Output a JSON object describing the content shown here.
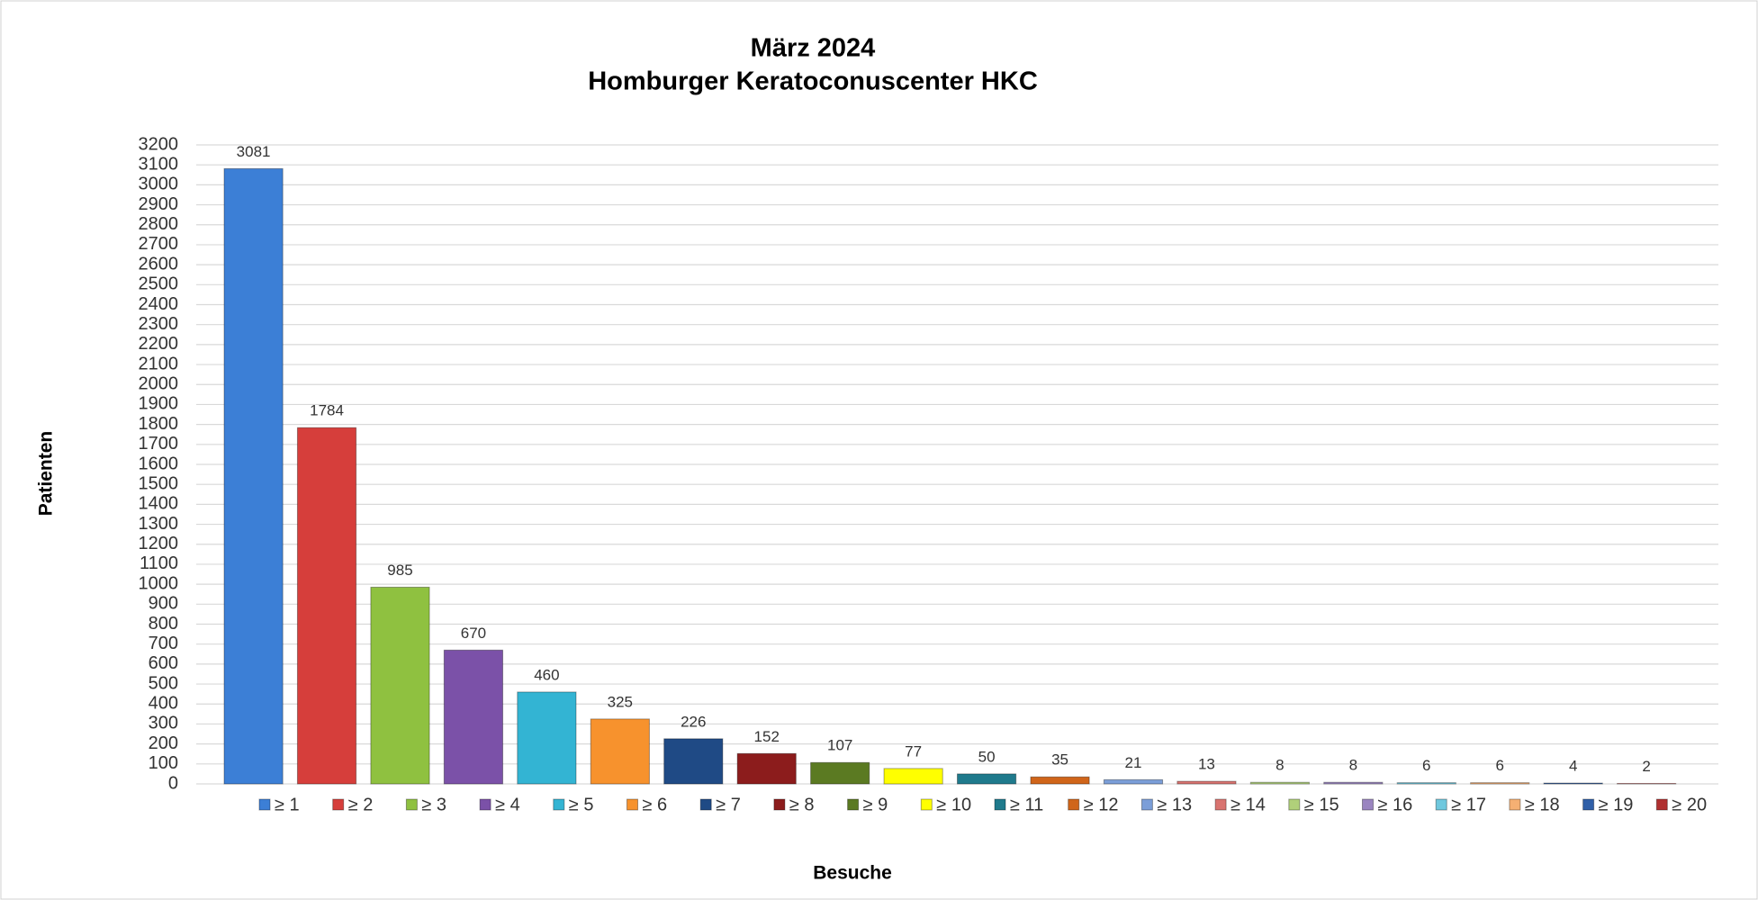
{
  "chart_data": {
    "type": "bar",
    "title": [
      "März 2024",
      "Homburger Keratoconuscenter HKC"
    ],
    "y_label": "Patienten",
    "x_label": "Besuche",
    "series": [
      {
        "name": "≥ 1",
        "color": "#3c7fd6",
        "values": [
          3081
        ]
      },
      {
        "name": "≥ 2",
        "color": "#d63e3b",
        "values": [
          1784
        ]
      },
      {
        "name": "≥ 3",
        "color": "#8fc140",
        "values": [
          985
        ]
      },
      {
        "name": "≥ 4",
        "color": "#7b51a8",
        "values": [
          670
        ]
      },
      {
        "name": "≥ 5",
        "color": "#33b4d3",
        "values": [
          460
        ]
      },
      {
        "name": "≥ 6",
        "color": "#f7922d",
        "values": [
          325
        ]
      },
      {
        "name": "≥ 7",
        "color": "#1f4a85",
        "values": [
          226
        ]
      },
      {
        "name": "≥ 8",
        "color": "#8c1c1c",
        "values": [
          152
        ]
      },
      {
        "name": "≥ 9",
        "color": "#5b7a22",
        "values": [
          107
        ]
      },
      {
        "name": "≥ 10",
        "color": "#ffff00",
        "values": [
          77
        ]
      },
      {
        "name": "≥ 11",
        "color": "#1f7a8c",
        "values": [
          50
        ]
      },
      {
        "name": "≥ 12",
        "color": "#d0651a",
        "values": [
          35
        ]
      },
      {
        "name": "≥ 13",
        "color": "#7b9ed8",
        "values": [
          21
        ]
      },
      {
        "name": "≥ 14",
        "color": "#d97470",
        "values": [
          13
        ]
      },
      {
        "name": "≥ 15",
        "color": "#b0d07a",
        "values": [
          8
        ]
      },
      {
        "name": "≥ 16",
        "color": "#9a85c0",
        "values": [
          8
        ]
      },
      {
        "name": "≥ 17",
        "color": "#6fc8de",
        "values": [
          6
        ]
      },
      {
        "name": "≥ 18",
        "color": "#f5b073",
        "values": [
          6
        ]
      },
      {
        "name": "≥ 19",
        "color": "#2f5fa8",
        "values": [
          4
        ]
      },
      {
        "name": "≥ 20",
        "color": "#b03030",
        "values": [
          2
        ]
      }
    ],
    "ylim": [
      0,
      3200
    ],
    "yticks": [
      0,
      100,
      200,
      300,
      400,
      500,
      600,
      700,
      800,
      900,
      1000,
      1100,
      1200,
      1300,
      1400,
      1500,
      1600,
      1700,
      1800,
      1900,
      2000,
      2100,
      2200,
      2300,
      2400,
      2500,
      2600,
      2700,
      2800,
      2900,
      3000,
      3100,
      3200
    ],
    "grid": true,
    "legend": "bottom"
  }
}
